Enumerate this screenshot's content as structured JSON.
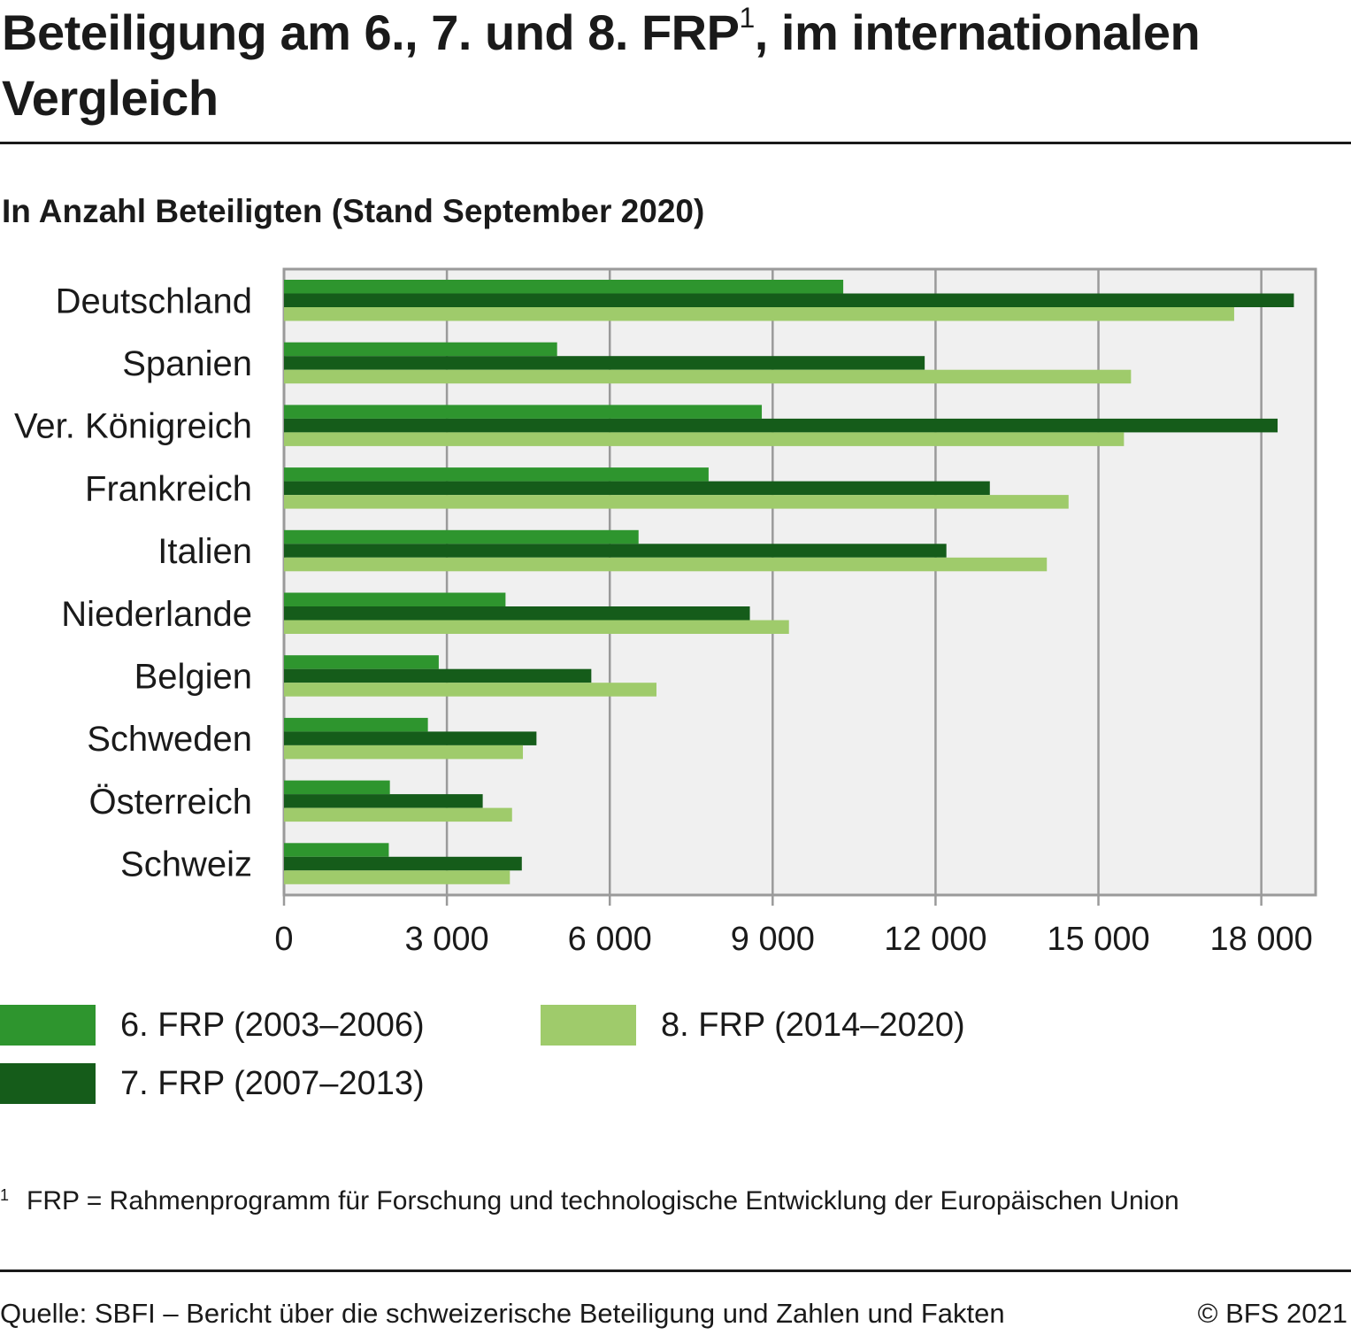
{
  "title": {
    "main": "Beteiligung am 6., 7. und 8. FRP",
    "sup": "1",
    "rest": ", im internationalen",
    "line2": "Vergleich"
  },
  "subtitle": "In Anzahl Beteiligten (Stand September 2020)",
  "colors": {
    "frp6": "#2e952e",
    "frp7": "#155c1a",
    "frp8": "#9fcb6b",
    "plot_bg": "#f0f0f0",
    "grid": "#9a9a9a"
  },
  "chart_data": {
    "type": "bar",
    "orientation": "horizontal",
    "categories": [
      "Deutschland",
      "Spanien",
      "Ver. Königreich",
      "Frankreich",
      "Italien",
      "Niederlande",
      "Belgien",
      "Schweden",
      "Österreich",
      "Schweiz"
    ],
    "series": [
      {
        "name": "6. FRP (2003–2006)",
        "color": "#2e952e",
        "values": [
          10300,
          5030,
          8800,
          7820,
          6530,
          4080,
          2850,
          2650,
          1950,
          1930
        ]
      },
      {
        "name": "7. FRP (2007–2013)",
        "color": "#155c1a",
        "values": [
          18600,
          11800,
          18300,
          13000,
          12200,
          8580,
          5660,
          4650,
          3660,
          4380
        ]
      },
      {
        "name": "8. FRP (2014–2020)",
        "color": "#9fcb6b",
        "values": [
          17500,
          15600,
          15470,
          14450,
          14050,
          9300,
          6860,
          4400,
          4200,
          4160
        ]
      }
    ],
    "xlim": [
      0,
      19000
    ],
    "xticks": [
      0,
      3000,
      6000,
      9000,
      12000,
      15000,
      18000
    ],
    "xtick_labels": [
      "0",
      "3 000",
      "6 000",
      "9 000",
      "12 000",
      "15 000",
      "18 000"
    ],
    "grid": true,
    "legend_position": "bottom"
  },
  "legend": [
    {
      "label": "6. FRP (2003–2006)",
      "color": "#2e952e"
    },
    {
      "label": "8. FRP (2014–2020)",
      "color": "#9fcb6b"
    },
    {
      "label": "7. FRP (2007–2013)",
      "color": "#155c1a"
    }
  ],
  "footnote": {
    "mark": "1",
    "text": "FRP = Rahmenprogramm für Forschung und technologische Entwicklung der Europäischen Union"
  },
  "source": "Quelle: SBFI – Bericht über die schweizerische Beteiligung und Zahlen und Fakten",
  "copyright": "© BFS 2021"
}
